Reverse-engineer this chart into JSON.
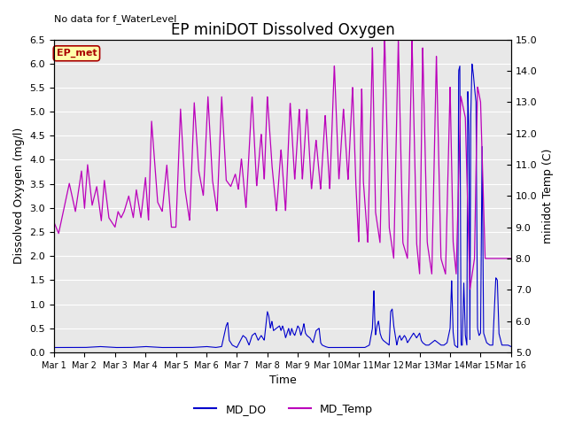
{
  "title": "EP miniDOT Dissolved Oxygen",
  "no_data_text": "No data for f_WaterLevel",
  "ep_met_label": "EP_met",
  "xlabel": "Time",
  "ylabel_left": "Dissolved Oxygen (mg/l)",
  "ylabel_right": "minidot Temp (C)",
  "ylim_left": [
    0.0,
    6.5
  ],
  "ylim_right": [
    5.0,
    15.0
  ],
  "yticks_left": [
    0.0,
    0.5,
    1.0,
    1.5,
    2.0,
    2.5,
    3.0,
    3.5,
    4.0,
    4.5,
    5.0,
    5.5,
    6.0,
    6.5
  ],
  "yticks_right": [
    5.0,
    6.0,
    7.0,
    8.0,
    9.0,
    10.0,
    11.0,
    12.0,
    13.0,
    14.0,
    15.0
  ],
  "color_do": "#0000CC",
  "color_temp": "#BB00BB",
  "background_color": "#E8E8E8",
  "legend_entries": [
    "MD_DO",
    "MD_Temp"
  ],
  "xtick_labels": [
    "Mar 1",
    "Mar 2",
    "Mar 3",
    "Mar 4",
    "Mar 5",
    "Mar 6",
    "Mar 7",
    "Mar 8",
    "Mar 9",
    "Mar 10",
    "Mar 11",
    "Mar 12",
    "Mar 13",
    "Mar 14",
    "Mar 15",
    "Mar 16"
  ],
  "title_fontsize": 12,
  "axis_label_fontsize": 9,
  "tick_fontsize": 8,
  "ep_met_color": "#AA0000",
  "ep_met_bg": "#FFFFAA"
}
